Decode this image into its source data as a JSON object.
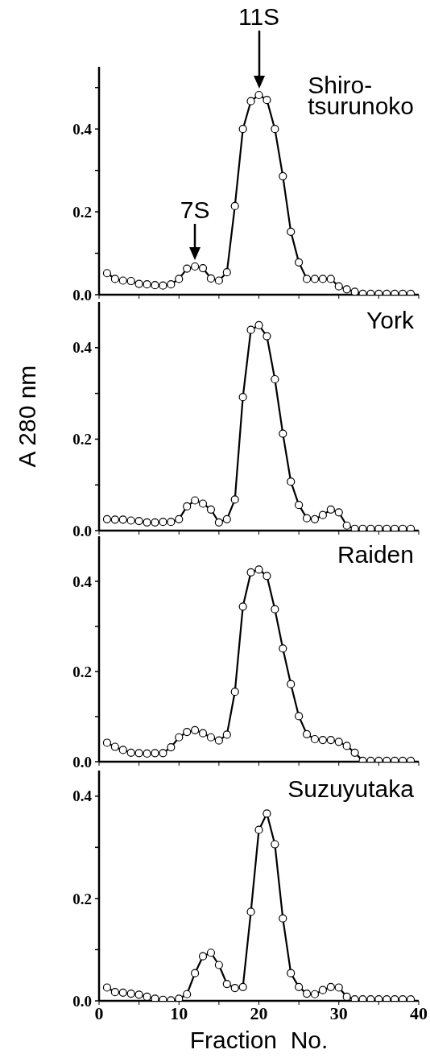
{
  "chart_data": [
    {
      "type": "line",
      "xlim": [
        0,
        40
      ],
      "xticks": [
        0,
        {
          "value": 5,
          "label": null
        },
        10,
        {
          "value": 15,
          "label": null
        },
        20,
        {
          "value": 25,
          "label": null
        },
        30,
        {
          "value": 35,
          "label": null
        },
        40
      ],
      "ylim": [
        0,
        0.55
      ],
      "yticks": [
        {
          "value": 0,
          "label": "0.0"
        },
        {
          "value": 0.1,
          "label": null
        },
        {
          "value": 0.2,
          "label": "0.2"
        },
        {
          "value": 0.3,
          "label": null
        },
        {
          "value": 0.4,
          "label": "0.4"
        },
        {
          "value": 0.5,
          "label": null
        }
      ],
      "tick_labels": "y",
      "marker": "circle",
      "line_style": "solid",
      "legend": "top right",
      "x": [
        1,
        2,
        3,
        4,
        5,
        6,
        7,
        8,
        9,
        10,
        11,
        12,
        13,
        14,
        15,
        16,
        17,
        18,
        19,
        20,
        21,
        22,
        23,
        24,
        25,
        26,
        27,
        28,
        29,
        30,
        31,
        32,
        33,
        34,
        35,
        36,
        37,
        38,
        39
      ],
      "series": [
        {
          "name": "Shiro-tsurunoko",
          "color": "#000000",
          "values": [
            0.052,
            0.038,
            0.034,
            0.033,
            0.026,
            0.025,
            0.023,
            0.022,
            0.025,
            0.038,
            0.063,
            0.068,
            0.064,
            0.039,
            0.034,
            0.054,
            0.214,
            0.4,
            0.467,
            0.482,
            0.47,
            0.4,
            0.286,
            0.152,
            0.078,
            0.038,
            0.038,
            0.038,
            0.038,
            0.02,
            0.013,
            0.007,
            0.002,
            0.002,
            0.002,
            0.002,
            0.002,
            0.002,
            0.002
          ]
        }
      ],
      "annotations": [
        {
          "text": "11S",
          "x": 20,
          "y": 0.482
        },
        {
          "text": "7S",
          "x": 12,
          "y": 0.068
        }
      ]
    },
    {
      "type": "line",
      "xlim": [
        0,
        40
      ],
      "xticks": [
        0,
        {
          "value": 5,
          "label": null
        },
        10,
        {
          "value": 15,
          "label": null
        },
        20,
        {
          "value": 25,
          "label": null
        },
        30,
        {
          "value": 35,
          "label": null
        },
        40
      ],
      "ylim": [
        0,
        0.5
      ],
      "yticks": [
        {
          "value": 0,
          "label": "0.0"
        },
        {
          "value": 0.1,
          "label": null
        },
        {
          "value": 0.2,
          "label": "0.2"
        },
        {
          "value": 0.3,
          "label": null
        },
        {
          "value": 0.4,
          "label": "0.4"
        }
      ],
      "tick_labels": "y",
      "ylabel": "A 280 nm",
      "marker": "circle",
      "line_style": "solid",
      "legend": "top right",
      "x": [
        1,
        2,
        3,
        4,
        5,
        6,
        7,
        8,
        9,
        10,
        11,
        12,
        13,
        14,
        15,
        16,
        17,
        18,
        19,
        20,
        21,
        22,
        23,
        24,
        25,
        26,
        27,
        28,
        29,
        30,
        31,
        32,
        33,
        34,
        35,
        36,
        37,
        38,
        39
      ],
      "series": [
        {
          "name": "York",
          "color": "#000000",
          "values": [
            0.025,
            0.024,
            0.024,
            0.022,
            0.021,
            0.018,
            0.018,
            0.019,
            0.019,
            0.025,
            0.053,
            0.066,
            0.059,
            0.046,
            0.018,
            0.025,
            0.068,
            0.292,
            0.439,
            0.449,
            0.425,
            0.331,
            0.212,
            0.107,
            0.056,
            0.027,
            0.025,
            0.034,
            0.046,
            0.04,
            0.011,
            0.004,
            0.004,
            0.004,
            0.004,
            0.004,
            0.004,
            0.004,
            0.004
          ]
        }
      ]
    },
    {
      "type": "line",
      "xlim": [
        0,
        40
      ],
      "xticks": [
        0,
        {
          "value": 5,
          "label": null
        },
        10,
        {
          "value": 15,
          "label": null
        },
        20,
        {
          "value": 25,
          "label": null
        },
        30,
        {
          "value": 35,
          "label": null
        },
        40
      ],
      "ylim": [
        0,
        0.5
      ],
      "yticks": [
        {
          "value": 0,
          "label": "0.0"
        },
        {
          "value": 0.1,
          "label": null
        },
        {
          "value": 0.2,
          "label": "0.2"
        },
        {
          "value": 0.3,
          "label": null
        },
        {
          "value": 0.4,
          "label": "0.4"
        }
      ],
      "tick_labels": "y",
      "marker": "circle",
      "line_style": "solid",
      "legend": "top right",
      "x": [
        1,
        2,
        3,
        4,
        5,
        6,
        7,
        8,
        9,
        10,
        11,
        12,
        13,
        14,
        15,
        16,
        17,
        18,
        19,
        20,
        21,
        22,
        23,
        24,
        25,
        26,
        27,
        28,
        29,
        30,
        31,
        32,
        33,
        34,
        35,
        36,
        37,
        38,
        39
      ],
      "series": [
        {
          "name": "Raiden",
          "color": "#000000",
          "values": [
            0.042,
            0.033,
            0.026,
            0.02,
            0.019,
            0.018,
            0.019,
            0.019,
            0.032,
            0.054,
            0.066,
            0.07,
            0.063,
            0.054,
            0.047,
            0.06,
            0.155,
            0.344,
            0.42,
            0.426,
            0.412,
            0.338,
            0.251,
            0.172,
            0.101,
            0.061,
            0.05,
            0.048,
            0.048,
            0.044,
            0.035,
            0.02,
            0.002,
            0.002,
            0.002,
            0.002,
            0.002,
            0.002,
            0.002
          ]
        }
      ]
    },
    {
      "type": "line",
      "xlim": [
        0,
        40
      ],
      "xticks": [
        0,
        {
          "value": 5,
          "label": null
        },
        10,
        {
          "value": 15,
          "label": null
        },
        20,
        {
          "value": 25,
          "label": null
        },
        30,
        {
          "value": 35,
          "label": null
        },
        40
      ],
      "ylim": [
        0,
        0.45
      ],
      "yticks": [
        {
          "value": 0,
          "label": "0.0"
        },
        {
          "value": 0.1,
          "label": null
        },
        {
          "value": 0.2,
          "label": "0.2"
        },
        {
          "value": 0.3,
          "label": null
        },
        {
          "value": 0.4,
          "label": "0.4"
        }
      ],
      "xlabel": "Fraction  No.",
      "marker": "circle",
      "line_style": "solid",
      "legend": "top right",
      "x": [
        1,
        2,
        3,
        4,
        5,
        6,
        7,
        8,
        9,
        10,
        11,
        12,
        13,
        14,
        15,
        16,
        17,
        18,
        19,
        20,
        21,
        22,
        23,
        24,
        25,
        26,
        27,
        28,
        29,
        30,
        31,
        32,
        33,
        34,
        35,
        36,
        37,
        38,
        39
      ],
      "series": [
        {
          "name": "Suzuyutaka",
          "color": "#000000",
          "values": [
            0.026,
            0.017,
            0.016,
            0.014,
            0.012,
            0.008,
            0.004,
            0.002,
            0.001,
            0.004,
            0.013,
            0.054,
            0.087,
            0.094,
            0.07,
            0.033,
            0.025,
            0.027,
            0.174,
            0.334,
            0.366,
            0.306,
            0.161,
            0.054,
            0.027,
            0.014,
            0.013,
            0.021,
            0.027,
            0.026,
            0.008,
            0.003,
            0.003,
            0.003,
            0.003,
            0.003,
            0.003,
            0.003,
            0.003
          ]
        }
      ]
    }
  ]
}
